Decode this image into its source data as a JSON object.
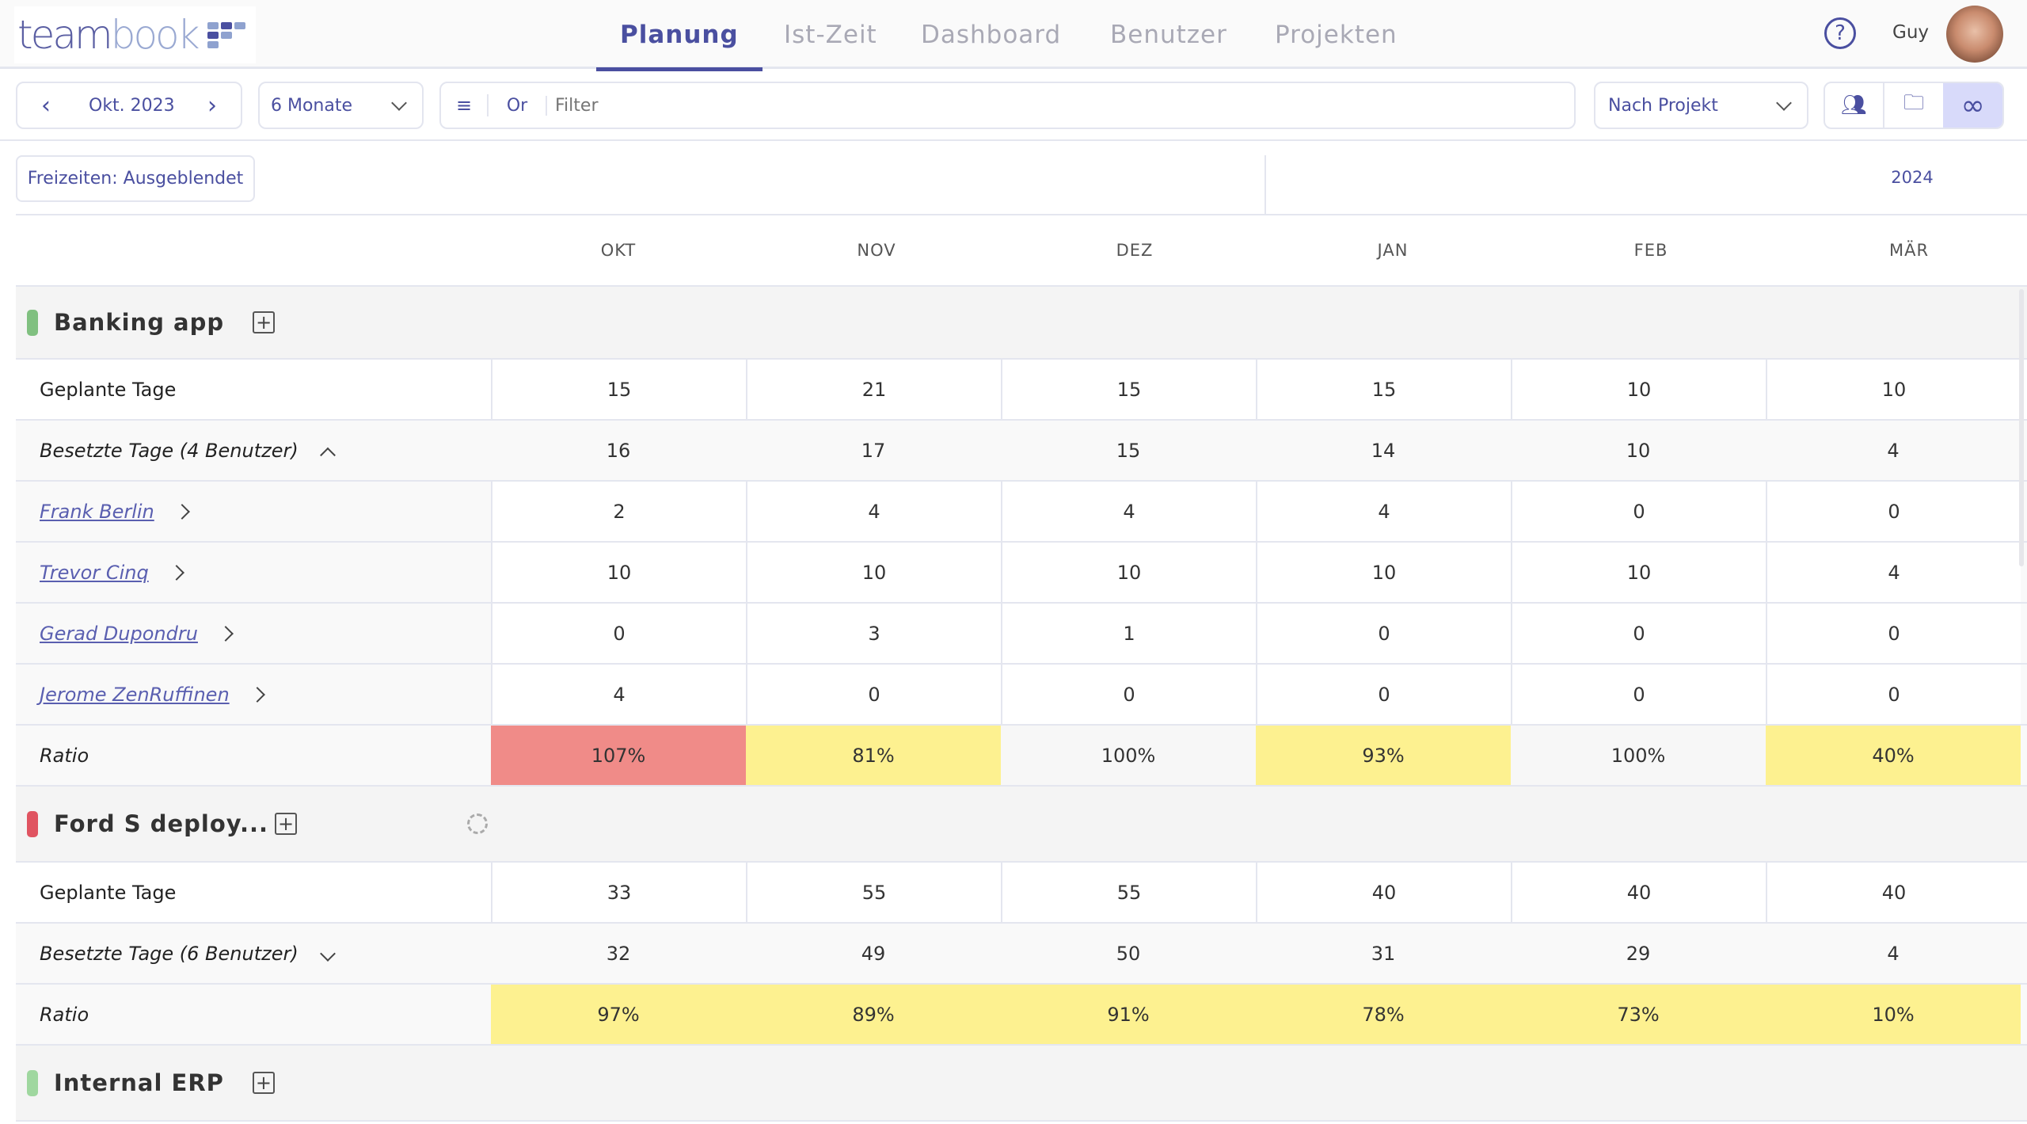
{
  "app": {
    "logo_text_1": "team",
    "logo_text_2": "book"
  },
  "nav": [
    {
      "label": "Planung",
      "active": true
    },
    {
      "label": "Ist-Zeit"
    },
    {
      "label": "Dashboard"
    },
    {
      "label": "Benutzer"
    },
    {
      "label": "Projekten"
    }
  ],
  "user": {
    "name": "Guy",
    "help_icon": "question-circle-icon"
  },
  "toolbar": {
    "date": "Okt. 2023",
    "range": "6 Monate",
    "filter_mode": "Or",
    "filter_placeholder": "Filter",
    "group_by": "Nach Projekt",
    "view_icons": [
      "users-icon",
      "folders-icon",
      "infinity-icon"
    ],
    "active_view": "infinity-icon"
  },
  "freizeiten_button": "Freizeiten: Ausgeblendet",
  "year_label": "2024",
  "months": [
    "OKT",
    "NOV",
    "DEZ",
    "JAN",
    "FEB",
    "MÄR"
  ],
  "colors": {
    "accent": "#4a4fa0",
    "ratio_over": "#f08b88",
    "ratio_under": "#fdf190",
    "ratio_ok": "#f7f7f7",
    "green": "#7fbf7f",
    "red": "#e05461"
  },
  "projects": [
    {
      "name": "Banking app",
      "color": "#80c080",
      "planned_label": "Geplante Tage",
      "planned": [
        "15",
        "21",
        "15",
        "15",
        "10",
        "10"
      ],
      "occupied_label": "Besetzte Tage (4 Benutzer)",
      "expanded": true,
      "occupied": [
        "16",
        "17",
        "15",
        "14",
        "10",
        "4"
      ],
      "users": [
        {
          "name": "Frank Berlin",
          "values": [
            "2",
            "4",
            "4",
            "4",
            "0",
            "0"
          ]
        },
        {
          "name": "Trevor Cinq",
          "values": [
            "10",
            "10",
            "10",
            "10",
            "10",
            "4"
          ]
        },
        {
          "name": "Gerad Dupondru",
          "values": [
            "0",
            "3",
            "1",
            "0",
            "0",
            "0"
          ]
        },
        {
          "name": "Jerome ZenRuffinen",
          "values": [
            "4",
            "0",
            "0",
            "0",
            "0",
            "0"
          ]
        }
      ],
      "ratio_label": "Ratio",
      "ratio": [
        "107%",
        "81%",
        "100%",
        "93%",
        "100%",
        "40%"
      ]
    },
    {
      "name": "Ford S deploy...",
      "color": "#e05461",
      "loading": true,
      "planned_label": "Geplante Tage",
      "planned": [
        "33",
        "55",
        "55",
        "40",
        "40",
        "40"
      ],
      "occupied_label": "Besetzte Tage (6 Benutzer)",
      "expanded": false,
      "occupied": [
        "32",
        "49",
        "50",
        "31",
        "29",
        "4"
      ],
      "users": [],
      "ratio_label": "Ratio",
      "ratio": [
        "97%",
        "89%",
        "91%",
        "78%",
        "73%",
        "10%"
      ]
    },
    {
      "name": "Internal ERP",
      "color": "#9fd79f"
    }
  ]
}
